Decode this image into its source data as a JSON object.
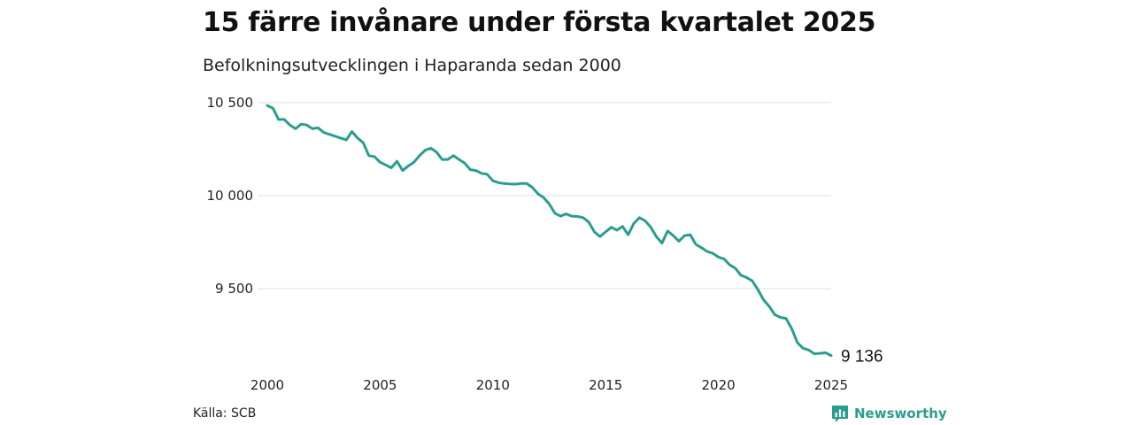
{
  "header": {
    "title": "15 färre invånare under första kvartalet 2025",
    "subtitle": "Befolkningsutvecklingen i Haparanda sedan 2000"
  },
  "footer": {
    "source": "Källa: SCB",
    "brand": "Newsworthy",
    "brand_icon": "bar-chart-speech-bubble-icon"
  },
  "colors": {
    "line": "#2a9d8f",
    "grid": "#dddddd",
    "brand": "#2a9d8f"
  },
  "chart_data": {
    "type": "line",
    "title": "15 färre invånare under första kvartalet 2025",
    "subtitle": "Befolkningsutvecklingen i Haparanda sedan 2000",
    "xlabel": "",
    "ylabel": "",
    "xlim": [
      2000,
      2025
    ],
    "ylim": [
      9050,
      10500
    ],
    "x_ticks": [
      2000,
      2005,
      2010,
      2015,
      2020,
      2025
    ],
    "x_tick_labels": [
      "2000",
      "2005",
      "2010",
      "2015",
      "2020",
      "2025"
    ],
    "y_ticks": [
      9500,
      10000,
      10500
    ],
    "y_tick_labels": [
      "9 500",
      "10 000",
      "10 500"
    ],
    "grid": true,
    "legend": "none",
    "end_label": "9 136",
    "series": [
      {
        "x": [
          2000.0,
          2000.25,
          2000.5,
          2000.75,
          2001.0,
          2001.25,
          2001.5,
          2001.75,
          2002.0,
          2002.25,
          2002.5,
          2002.75,
          2003.0,
          2003.25,
          2003.5,
          2003.75,
          2004.0,
          2004.25,
          2004.5,
          2004.75,
          2005.0,
          2005.25,
          2005.5,
          2005.75,
          2006.0,
          2006.25,
          2006.5,
          2006.75,
          2007.0,
          2007.25,
          2007.5,
          2007.75,
          2008.0,
          2008.25,
          2008.5,
          2008.75,
          2009.0,
          2009.25,
          2009.5,
          2009.75,
          2010.0,
          2010.25,
          2010.5,
          2010.75,
          2011.0,
          2011.25,
          2011.5,
          2011.75,
          2012.0,
          2012.25,
          2012.5,
          2012.75,
          2013.0,
          2013.25,
          2013.5,
          2013.75,
          2014.0,
          2014.25,
          2014.5,
          2014.75,
          2015.0,
          2015.25,
          2015.5,
          2015.75,
          2016.0,
          2016.25,
          2016.5,
          2016.75,
          2017.0,
          2017.25,
          2017.5,
          2017.75,
          2018.0,
          2018.25,
          2018.5,
          2018.75,
          2019.0,
          2019.25,
          2019.5,
          2019.75,
          2020.0,
          2020.25,
          2020.5,
          2020.75,
          2021.0,
          2021.25,
          2021.5,
          2021.75,
          2022.0,
          2022.25,
          2022.5,
          2022.75,
          2023.0,
          2023.25,
          2023.5,
          2023.75,
          2024.0,
          2024.25,
          2024.5,
          2024.75,
          2025.0
        ],
        "values": [
          10485,
          10470,
          10410,
          10410,
          10380,
          10360,
          10385,
          10380,
          10360,
          10365,
          10340,
          10330,
          10320,
          10310,
          10300,
          10345,
          10310,
          10285,
          10215,
          10210,
          10180,
          10165,
          10150,
          10185,
          10135,
          10160,
          10180,
          10215,
          10245,
          10255,
          10235,
          10195,
          10195,
          10215,
          10195,
          10175,
          10140,
          10135,
          10120,
          10115,
          10080,
          10070,
          10065,
          10063,
          10062,
          10065,
          10065,
          10045,
          10010,
          9990,
          9955,
          9905,
          9890,
          9902,
          9890,
          9888,
          9882,
          9858,
          9805,
          9780,
          9805,
          9830,
          9815,
          9835,
          9790,
          9850,
          9882,
          9865,
          9830,
          9780,
          9745,
          9810,
          9785,
          9755,
          9785,
          9790,
          9738,
          9720,
          9700,
          9690,
          9670,
          9660,
          9628,
          9610,
          9572,
          9560,
          9542,
          9495,
          9440,
          9405,
          9360,
          9345,
          9340,
          9285,
          9210,
          9180,
          9170,
          9150,
          9152,
          9155,
          9140
        ]
      }
    ]
  }
}
